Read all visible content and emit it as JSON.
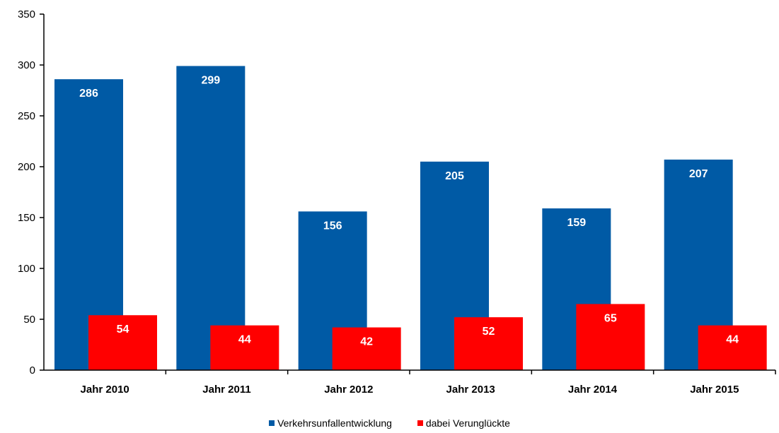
{
  "colors": {
    "series_blue": "#005aa5",
    "series_red": "#ff0000"
  },
  "chart_data": {
    "type": "bar",
    "categories": [
      "Jahr 2010",
      "Jahr 2011",
      "Jahr 2012",
      "Jahr 2013",
      "Jahr 2014",
      "Jahr 2015"
    ],
    "series": [
      {
        "name": "Verkehrsunfallentwicklung",
        "values": [
          286,
          299,
          156,
          205,
          159,
          207
        ],
        "color": "#005aa5"
      },
      {
        "name": "dabei Verunglückte",
        "values": [
          54,
          44,
          42,
          52,
          65,
          44
        ],
        "color": "#ff0000"
      }
    ],
    "title": "",
    "xlabel": "",
    "ylabel": "",
    "ylim": [
      0,
      350
    ],
    "yticks": [
      0,
      50,
      100,
      150,
      200,
      250,
      300,
      350
    ],
    "grid": false,
    "legend_position": "bottom",
    "data_labels": true
  }
}
